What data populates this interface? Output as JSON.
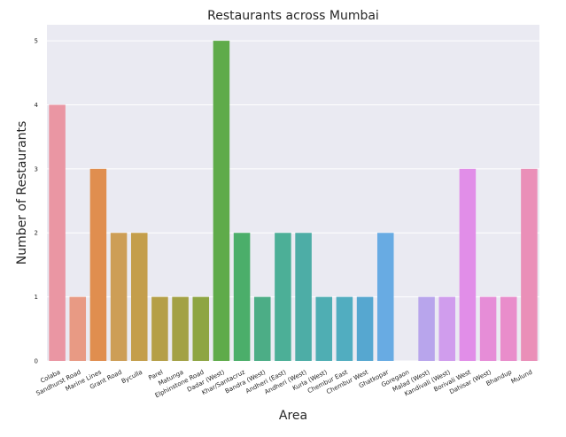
{
  "chart_data": {
    "type": "bar",
    "title": "Restaurants across Mumbai",
    "xlabel": "Area",
    "ylabel": "Number of Restaurants",
    "ylim": [
      0,
      5.25
    ],
    "yticks": [
      0,
      1,
      2,
      3,
      4,
      5
    ],
    "grid": true,
    "categories": [
      "Colaba",
      "Sandhurst Road",
      "Marine Lines",
      "Grant Road",
      "Byculla",
      "Parel",
      "Matunga",
      "Elphinstone Road",
      "Dadar (West)",
      "Khar/Santacruz",
      "Bandra (West)",
      "Andheri (East)",
      "Andheri (West)",
      "Kurla (West)",
      "Chembur East",
      "Chembur West",
      "Ghatkopar",
      "Goregaon",
      "Malad (West)",
      "Kandivali (West)",
      "Borivali West",
      "Dahisar (West)",
      "Bhandup",
      "Mulund"
    ],
    "values": [
      4,
      1,
      3,
      2,
      2,
      1,
      1,
      1,
      5,
      2,
      1,
      2,
      2,
      1,
      1,
      1,
      2,
      0,
      1,
      1,
      3,
      1,
      1,
      3
    ],
    "colors": [
      "#ea96a3",
      "#e89a84",
      "#e08e4f",
      "#cd9e56",
      "#c49e4b",
      "#b59f47",
      "#a3a145",
      "#8ea543",
      "#5fab4a",
      "#4bae6a",
      "#4cad86",
      "#4caf97",
      "#4dada6",
      "#4faeb3",
      "#51adc0",
      "#56a7d0",
      "#68abe3",
      "#9ba8e8",
      "#b8a5ec",
      "#d09ded",
      "#e18ee8",
      "#e68dd7",
      "#e98dcb",
      "#ea8fb8"
    ],
    "background": "#eaeaf2"
  }
}
